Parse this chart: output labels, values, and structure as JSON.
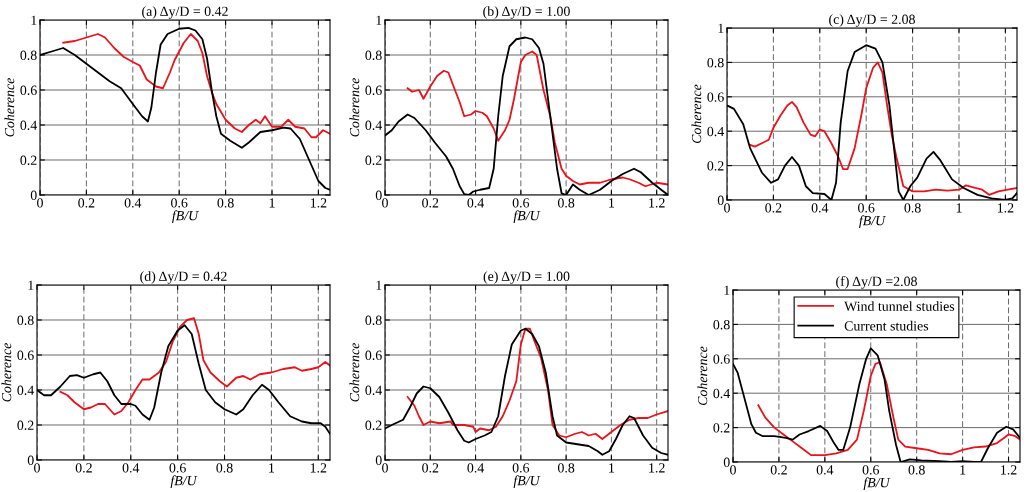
{
  "chart_data": [
    {
      "type": "line",
      "title": "(a) Δy/D = 0.42",
      "xlabel": "fB/U",
      "ylabel": "Coherence",
      "xlim": [
        0,
        1.25
      ],
      "ylim": [
        0,
        1
      ],
      "xticks": [
        0,
        0.2,
        0.4,
        0.6,
        0.8,
        1,
        1.2
      ],
      "yticks": [
        0,
        0.2,
        0.4,
        0.6,
        0.8,
        1
      ],
      "grid": true,
      "marker": "none",
      "series": [
        {
          "color": "#e8131b",
          "x": [
            0.1,
            0.15,
            0.2,
            0.25,
            0.28,
            0.32,
            0.36,
            0.4,
            0.43,
            0.46,
            0.5,
            0.53,
            0.56,
            0.58,
            0.6,
            0.62,
            0.65,
            0.68,
            0.7,
            0.72,
            0.74,
            0.76,
            0.8,
            0.84,
            0.87,
            0.9,
            0.93,
            0.95,
            0.97,
            1.0,
            1.04,
            1.07,
            1.1,
            1.14,
            1.17,
            1.19,
            1.22,
            1.25
          ],
          "values": [
            0.87,
            0.88,
            0.9,
            0.92,
            0.9,
            0.84,
            0.79,
            0.76,
            0.74,
            0.66,
            0.62,
            0.61,
            0.7,
            0.77,
            0.82,
            0.87,
            0.92,
            0.88,
            0.81,
            0.68,
            0.59,
            0.52,
            0.43,
            0.38,
            0.36,
            0.4,
            0.43,
            0.41,
            0.45,
            0.39,
            0.39,
            0.43,
            0.39,
            0.38,
            0.33,
            0.33,
            0.37,
            0.35
          ]
        },
        {
          "color": "#000000",
          "x": [
            0,
            0.05,
            0.1,
            0.15,
            0.2,
            0.25,
            0.3,
            0.35,
            0.4,
            0.44,
            0.465,
            0.48,
            0.5,
            0.52,
            0.55,
            0.6,
            0.64,
            0.67,
            0.7,
            0.72,
            0.74,
            0.76,
            0.78,
            0.82,
            0.87,
            0.9,
            0.95,
            1.0,
            1.05,
            1.08,
            1.12,
            1.16,
            1.2,
            1.23,
            1.25
          ],
          "values": [
            0.8,
            0.82,
            0.84,
            0.8,
            0.75,
            0.7,
            0.65,
            0.61,
            0.52,
            0.45,
            0.42,
            0.5,
            0.7,
            0.86,
            0.92,
            0.95,
            0.955,
            0.94,
            0.89,
            0.78,
            0.6,
            0.45,
            0.35,
            0.31,
            0.27,
            0.3,
            0.36,
            0.37,
            0.385,
            0.38,
            0.32,
            0.2,
            0.08,
            0.04,
            0.03
          ]
        }
      ]
    },
    {
      "type": "line",
      "title": "(b) Δy/D = 1.00",
      "xlabel": "fB/U",
      "ylabel": "Coherence",
      "xlim": [
        0,
        1.25
      ],
      "ylim": [
        0,
        1
      ],
      "xticks": [
        0,
        0.2,
        0.4,
        0.6,
        0.8,
        1,
        1.2
      ],
      "yticks": [
        0,
        0.2,
        0.4,
        0.6,
        0.8,
        1
      ],
      "grid": true,
      "marker": "none",
      "series": [
        {
          "color": "#e8131b",
          "x": [
            0.1,
            0.12,
            0.15,
            0.17,
            0.2,
            0.23,
            0.26,
            0.28,
            0.3,
            0.33,
            0.35,
            0.38,
            0.4,
            0.43,
            0.45,
            0.48,
            0.5,
            0.53,
            0.55,
            0.57,
            0.6,
            0.62,
            0.65,
            0.67,
            0.7,
            0.73,
            0.75,
            0.78,
            0.8,
            0.83,
            0.86,
            0.9,
            0.95,
            1.0,
            1.05,
            1.08,
            1.12,
            1.15,
            1.2,
            1.25
          ],
          "values": [
            0.61,
            0.59,
            0.6,
            0.55,
            0.62,
            0.68,
            0.71,
            0.7,
            0.63,
            0.53,
            0.45,
            0.46,
            0.48,
            0.47,
            0.45,
            0.38,
            0.31,
            0.37,
            0.43,
            0.55,
            0.76,
            0.8,
            0.82,
            0.8,
            0.6,
            0.45,
            0.3,
            0.15,
            0.11,
            0.08,
            0.06,
            0.07,
            0.07,
            0.09,
            0.1,
            0.09,
            0.07,
            0.05,
            0.07,
            0.06
          ]
        },
        {
          "color": "#000000",
          "x": [
            0,
            0.03,
            0.06,
            0.1,
            0.13,
            0.18,
            0.22,
            0.27,
            0.3,
            0.33,
            0.35,
            0.37,
            0.39,
            0.42,
            0.46,
            0.48,
            0.5,
            0.52,
            0.55,
            0.58,
            0.62,
            0.65,
            0.68,
            0.7,
            0.72,
            0.74,
            0.76,
            0.78,
            0.8,
            0.83,
            0.86,
            0.9,
            0.95,
            1.0,
            1.05,
            1.1,
            1.13,
            1.18,
            1.22,
            1.25
          ],
          "values": [
            0.34,
            0.37,
            0.42,
            0.46,
            0.44,
            0.37,
            0.3,
            0.22,
            0.15,
            0.05,
            0.005,
            0,
            0.02,
            0.03,
            0.04,
            0.15,
            0.45,
            0.68,
            0.85,
            0.89,
            0.9,
            0.89,
            0.84,
            0.75,
            0.55,
            0.35,
            0.15,
            0.01,
            0,
            0.06,
            0.03,
            0,
            0.03,
            0.08,
            0.12,
            0.15,
            0.13,
            0.07,
            0.03,
            0
          ]
        }
      ]
    },
    {
      "type": "line",
      "title": "(c) Δy/D = 2.08",
      "xlabel": "fB/U",
      "ylabel": "Coherence",
      "xlim": [
        0,
        1.25
      ],
      "ylim": [
        0,
        1
      ],
      "xticks": [
        0,
        0.2,
        0.4,
        0.6,
        0.8,
        1,
        1.2
      ],
      "yticks": [
        0,
        0.2,
        0.4,
        0.6,
        0.8,
        1
      ],
      "grid": true,
      "marker": "none",
      "series": [
        {
          "color": "#e8131b",
          "x": [
            0.1,
            0.12,
            0.15,
            0.18,
            0.2,
            0.23,
            0.26,
            0.28,
            0.3,
            0.33,
            0.36,
            0.38,
            0.4,
            0.42,
            0.45,
            0.48,
            0.5,
            0.52,
            0.55,
            0.58,
            0.6,
            0.63,
            0.65,
            0.67,
            0.69,
            0.71,
            0.73,
            0.76,
            0.8,
            0.85,
            0.9,
            0.95,
            1.0,
            1.03,
            1.07,
            1.1,
            1.13,
            1.17,
            1.21,
            1.25
          ],
          "values": [
            0.32,
            0.31,
            0.33,
            0.35,
            0.42,
            0.49,
            0.55,
            0.57,
            0.54,
            0.45,
            0.38,
            0.37,
            0.41,
            0.4,
            0.33,
            0.25,
            0.18,
            0.18,
            0.3,
            0.5,
            0.65,
            0.77,
            0.8,
            0.74,
            0.55,
            0.38,
            0.25,
            0.08,
            0.05,
            0.05,
            0.06,
            0.055,
            0.06,
            0.085,
            0.07,
            0.06,
            0.03,
            0.05,
            0.06,
            0.07
          ]
        },
        {
          "color": "#000000",
          "x": [
            0,
            0.03,
            0.07,
            0.1,
            0.15,
            0.19,
            0.22,
            0.25,
            0.28,
            0.31,
            0.34,
            0.37,
            0.42,
            0.45,
            0.47,
            0.49,
            0.52,
            0.55,
            0.6,
            0.64,
            0.67,
            0.7,
            0.72,
            0.74,
            0.76,
            0.79,
            0.82,
            0.86,
            0.89,
            0.92,
            0.97,
            1.02,
            1.08,
            1.14,
            1.2,
            1.23,
            1.25
          ],
          "values": [
            0.55,
            0.53,
            0.44,
            0.3,
            0.16,
            0.1,
            0.12,
            0.2,
            0.25,
            0.2,
            0.08,
            0.04,
            0.035,
            0,
            0.1,
            0.45,
            0.75,
            0.86,
            0.9,
            0.88,
            0.8,
            0.55,
            0.3,
            0.05,
            0,
            0.08,
            0.13,
            0.24,
            0.28,
            0.23,
            0.12,
            0.07,
            0.03,
            0.01,
            0,
            0.01,
            0.04
          ]
        }
      ]
    },
    {
      "type": "line",
      "title": "(d) Δy/D = 0.42",
      "xlabel": "fB/U",
      "ylabel": "Coherence",
      "xlim": [
        0,
        1.25
      ],
      "ylim": [
        0,
        1
      ],
      "xticks": [
        0,
        0.2,
        0.4,
        0.6,
        0.8,
        1,
        1.2
      ],
      "yticks": [
        0,
        0.2,
        0.4,
        0.6,
        0.8,
        1
      ],
      "grid": true,
      "marker": "none",
      "series": [
        {
          "color": "#e8131b",
          "x": [
            0.1,
            0.13,
            0.16,
            0.2,
            0.23,
            0.26,
            0.29,
            0.31,
            0.33,
            0.36,
            0.39,
            0.42,
            0.45,
            0.48,
            0.52,
            0.55,
            0.58,
            0.61,
            0.64,
            0.67,
            0.69,
            0.71,
            0.74,
            0.78,
            0.81,
            0.85,
            0.88,
            0.91,
            0.95,
            1.0,
            1.05,
            1.1,
            1.13,
            1.17,
            1.2,
            1.23,
            1.25
          ],
          "values": [
            0.39,
            0.37,
            0.33,
            0.29,
            0.3,
            0.32,
            0.32,
            0.29,
            0.26,
            0.28,
            0.33,
            0.4,
            0.46,
            0.46,
            0.5,
            0.56,
            0.68,
            0.76,
            0.8,
            0.81,
            0.72,
            0.57,
            0.5,
            0.45,
            0.42,
            0.47,
            0.48,
            0.46,
            0.49,
            0.5,
            0.52,
            0.53,
            0.51,
            0.52,
            0.53,
            0.56,
            0.54
          ]
        },
        {
          "color": "#000000",
          "x": [
            0,
            0.03,
            0.06,
            0.1,
            0.14,
            0.17,
            0.2,
            0.24,
            0.27,
            0.3,
            0.33,
            0.36,
            0.4,
            0.42,
            0.45,
            0.48,
            0.5,
            0.53,
            0.56,
            0.6,
            0.63,
            0.66,
            0.69,
            0.72,
            0.76,
            0.8,
            0.85,
            0.88,
            0.92,
            0.96,
            0.99,
            1.03,
            1.08,
            1.13,
            1.17,
            1.21,
            1.23,
            1.25
          ],
          "values": [
            0.4,
            0.37,
            0.37,
            0.42,
            0.48,
            0.485,
            0.47,
            0.49,
            0.5,
            0.45,
            0.37,
            0.32,
            0.32,
            0.31,
            0.26,
            0.23,
            0.3,
            0.5,
            0.65,
            0.74,
            0.77,
            0.72,
            0.55,
            0.4,
            0.33,
            0.29,
            0.26,
            0.29,
            0.37,
            0.43,
            0.4,
            0.33,
            0.25,
            0.22,
            0.21,
            0.21,
            0.19,
            0.15
          ]
        }
      ]
    },
    {
      "type": "line",
      "title": "(e) Δy/D = 1.00",
      "xlabel": "fB/U",
      "ylabel": "Coherence",
      "xlim": [
        0,
        1.25
      ],
      "ylim": [
        0,
        1
      ],
      "xticks": [
        0,
        0.2,
        0.4,
        0.6,
        0.8,
        1,
        1.2
      ],
      "yticks": [
        0,
        0.2,
        0.4,
        0.6,
        0.8,
        1
      ],
      "grid": true,
      "marker": "none",
      "series": [
        {
          "color": "#e8131b",
          "x": [
            0.1,
            0.13,
            0.15,
            0.17,
            0.2,
            0.24,
            0.29,
            0.3,
            0.35,
            0.39,
            0.4,
            0.42,
            0.46,
            0.49,
            0.52,
            0.55,
            0.58,
            0.6,
            0.62,
            0.64,
            0.66,
            0.69,
            0.72,
            0.74,
            0.77,
            0.8,
            0.84,
            0.87,
            0.9,
            0.93,
            0.96,
            1.0,
            1.04,
            1.08,
            1.12,
            1.16,
            1.2,
            1.25
          ],
          "values": [
            0.36,
            0.31,
            0.25,
            0.2,
            0.22,
            0.21,
            0.22,
            0.2,
            0.2,
            0.19,
            0.16,
            0.18,
            0.17,
            0.19,
            0.25,
            0.34,
            0.45,
            0.66,
            0.75,
            0.75,
            0.68,
            0.58,
            0.4,
            0.2,
            0.14,
            0.13,
            0.15,
            0.16,
            0.14,
            0.15,
            0.12,
            0.16,
            0.2,
            0.23,
            0.24,
            0.24,
            0.26,
            0.28
          ]
        },
        {
          "color": "#000000",
          "x": [
            0,
            0.03,
            0.08,
            0.11,
            0.14,
            0.17,
            0.2,
            0.24,
            0.28,
            0.32,
            0.35,
            0.37,
            0.4,
            0.44,
            0.47,
            0.5,
            0.53,
            0.56,
            0.6,
            0.62,
            0.65,
            0.68,
            0.71,
            0.74,
            0.76,
            0.8,
            0.85,
            0.9,
            0.94,
            0.96,
            0.99,
            1.02,
            1.05,
            1.08,
            1.1,
            1.14,
            1.18,
            1.22,
            1.25
          ],
          "values": [
            0.18,
            0.2,
            0.23,
            0.3,
            0.38,
            0.42,
            0.41,
            0.36,
            0.27,
            0.17,
            0.11,
            0.1,
            0.12,
            0.14,
            0.16,
            0.25,
            0.48,
            0.66,
            0.74,
            0.75,
            0.72,
            0.65,
            0.5,
            0.25,
            0.14,
            0.1,
            0.09,
            0.08,
            0.05,
            0.03,
            0.05,
            0.12,
            0.2,
            0.25,
            0.24,
            0.14,
            0.07,
            0.04,
            0.03
          ]
        }
      ]
    },
    {
      "type": "line",
      "title": "(f) Δy/D =2.08",
      "xlabel": "fB/U",
      "ylabel": "Coherence",
      "xlim": [
        0,
        1.25
      ],
      "ylim": [
        0,
        1
      ],
      "xticks": [
        0,
        0.2,
        0.4,
        0.6,
        0.8,
        1,
        1.2
      ],
      "yticks": [
        0,
        0.2,
        0.4,
        0.6,
        0.8,
        1
      ],
      "grid": true,
      "marker": "none",
      "legend": "top",
      "series": [
        {
          "name": "Wind tunnel studies",
          "color": "#e8131b",
          "x": [
            0.11,
            0.14,
            0.18,
            0.22,
            0.26,
            0.3,
            0.34,
            0.4,
            0.45,
            0.5,
            0.54,
            0.57,
            0.6,
            0.62,
            0.64,
            0.67,
            0.7,
            0.72,
            0.75,
            0.8,
            0.85,
            0.9,
            0.95,
            1.0,
            1.05,
            1.1,
            1.15,
            1.18,
            1.2,
            1.23,
            1.25
          ],
          "values": [
            0.33,
            0.26,
            0.2,
            0.16,
            0.12,
            0.08,
            0.04,
            0.04,
            0.05,
            0.07,
            0.13,
            0.3,
            0.5,
            0.57,
            0.58,
            0.45,
            0.25,
            0.13,
            0.09,
            0.08,
            0.07,
            0.05,
            0.045,
            0.07,
            0.085,
            0.09,
            0.11,
            0.14,
            0.16,
            0.15,
            0.13
          ]
        },
        {
          "name": "Current studies",
          "color": "#000000",
          "x": [
            0,
            0.02,
            0.05,
            0.08,
            0.1,
            0.13,
            0.18,
            0.23,
            0.26,
            0.29,
            0.33,
            0.38,
            0.41,
            0.44,
            0.46,
            0.48,
            0.51,
            0.55,
            0.58,
            0.6,
            0.63,
            0.66,
            0.68,
            0.71,
            0.73,
            0.77,
            0.82,
            0.9,
            0.95,
            1.0,
            1.05,
            1.08,
            1.11,
            1.15,
            1.19,
            1.22,
            1.25
          ],
          "values": [
            0.57,
            0.52,
            0.37,
            0.22,
            0.17,
            0.15,
            0.15,
            0.14,
            0.13,
            0.16,
            0.18,
            0.21,
            0.18,
            0.11,
            0.07,
            0.07,
            0.2,
            0.45,
            0.6,
            0.66,
            0.62,
            0.48,
            0.3,
            0.1,
            0,
            0.015,
            0.01,
            0.005,
            0,
            0.005,
            0,
            0,
            0.08,
            0.17,
            0.205,
            0.19,
            0.14
          ]
        }
      ]
    }
  ]
}
